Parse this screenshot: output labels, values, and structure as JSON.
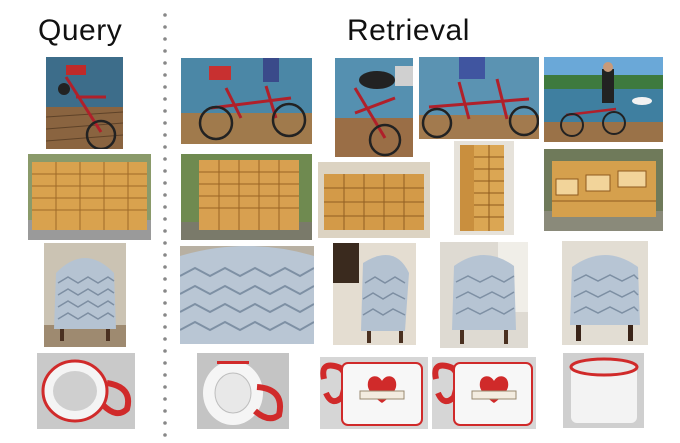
{
  "headings": {
    "query": "Query",
    "retrieval": "Retrieval"
  },
  "rows": [
    {
      "subject": "bicycle",
      "colors": {
        "primary": "#b0202a",
        "secondary": "#7a5a3a",
        "bg": "#5a8fb0"
      }
    },
    {
      "subject": "cabinet",
      "colors": {
        "primary": "#d8a04a",
        "secondary": "#a8702a",
        "bg": "#7a8a60"
      }
    },
    {
      "subject": "armchair",
      "colors": {
        "primary": "#aebccb",
        "secondary": "#5a4030",
        "bg": "#c9c2b5"
      }
    },
    {
      "subject": "mug",
      "colors": {
        "primary": "#ffffff",
        "secondary": "#d02a2a",
        "bg": "#cfcfcf"
      }
    }
  ]
}
